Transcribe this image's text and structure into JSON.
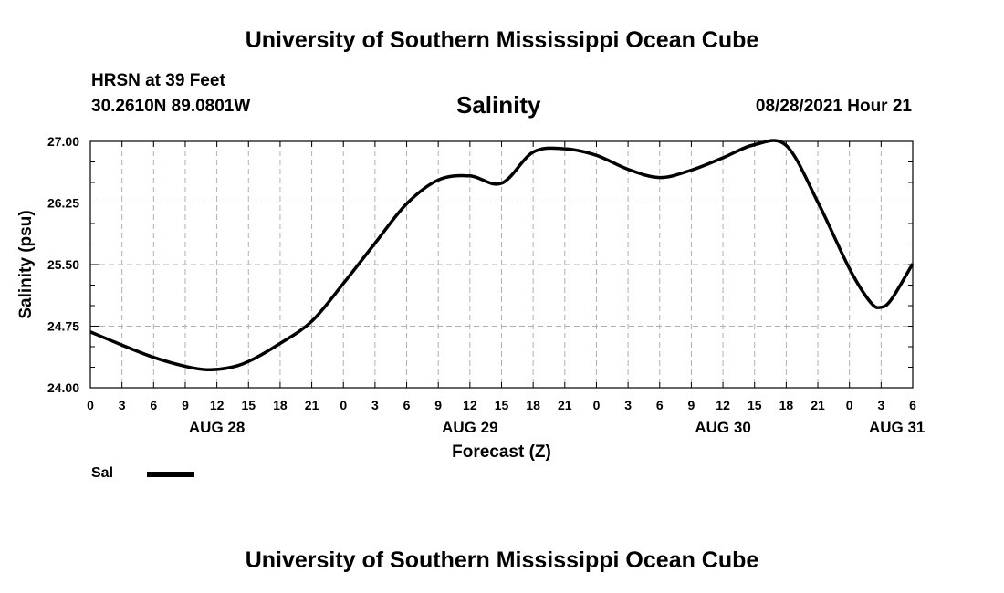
{
  "page": {
    "top_title": "University of Southern Mississippi Ocean Cube",
    "bottom_title": "University of Southern Mississippi Ocean Cube",
    "station": "HRSN at 39 Feet",
    "location": "30.2610N  89.0801W",
    "timestamp": "08/28/2021 Hour 21"
  },
  "legend": {
    "label": "Sal"
  },
  "colors": {
    "line": "#000000",
    "grid": "#b0b0b0",
    "axis": "#000000"
  },
  "chart_data": {
    "type": "line",
    "title": "Salinity",
    "xlabel": "Forecast (Z)",
    "ylabel": "Salinity (psu)",
    "xlim": [
      0,
      78
    ],
    "ylim": [
      24.0,
      27.0
    ],
    "grid": true,
    "x_tick_values": [
      0,
      3,
      6,
      9,
      12,
      15,
      18,
      21,
      24,
      27,
      30,
      33,
      36,
      39,
      42,
      45,
      48,
      51,
      54,
      57,
      60,
      63,
      66,
      69,
      72,
      75,
      78
    ],
    "x_tick_labels": [
      "0",
      "3",
      "6",
      "9",
      "12",
      "15",
      "18",
      "21",
      "0",
      "3",
      "6",
      "9",
      "12",
      "15",
      "18",
      "21",
      "0",
      "3",
      "6",
      "9",
      "12",
      "15",
      "18",
      "21",
      "0",
      "3",
      "6"
    ],
    "day_labels": [
      {
        "at": 12,
        "text": "AUG 28"
      },
      {
        "at": 36,
        "text": "AUG 29"
      },
      {
        "at": 60,
        "text": "AUG 30"
      },
      {
        "at": 76.5,
        "text": "AUG 31"
      }
    ],
    "y_tick_values": [
      24.0,
      24.75,
      25.5,
      26.25,
      27.0
    ],
    "y_tick_labels": [
      "24.00",
      "24.75",
      "25.50",
      "26.25",
      "27.00"
    ],
    "y_minor_step": 0.25,
    "series": [
      {
        "name": "Sal",
        "x": [
          0,
          3,
          6,
          9,
          11,
          13,
          15,
          18,
          21,
          24,
          27,
          30,
          33,
          36,
          39,
          42,
          45,
          48,
          51,
          54,
          57,
          60,
          63,
          66,
          69,
          72,
          74,
          75,
          76,
          78
        ],
        "y": [
          24.68,
          24.52,
          24.37,
          24.26,
          24.22,
          24.24,
          24.32,
          24.54,
          24.81,
          25.27,
          25.76,
          26.24,
          26.53,
          26.58,
          26.49,
          26.87,
          26.91,
          26.83,
          26.66,
          26.56,
          26.65,
          26.8,
          26.96,
          26.95,
          26.26,
          25.45,
          25.04,
          24.98,
          25.08,
          25.51
        ]
      }
    ]
  }
}
